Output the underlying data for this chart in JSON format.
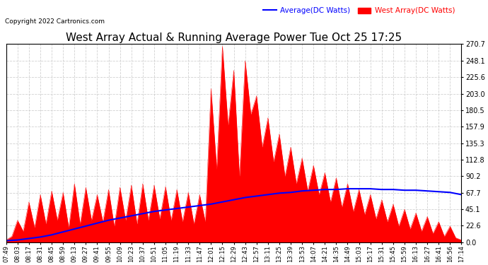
{
  "title": "West Array Actual & Running Average Power Tue Oct 25 17:25",
  "copyright": "Copyright 2022 Cartronics.com",
  "legend_avg": "Average(DC Watts)",
  "legend_west": "West Array(DC Watts)",
  "title_fontsize": 11,
  "yticks": [
    0.0,
    22.6,
    45.1,
    67.7,
    90.2,
    112.8,
    135.3,
    157.9,
    180.5,
    203.0,
    225.6,
    248.1,
    270.7
  ],
  "ymax": 270.7,
  "ymin": 0.0,
  "bg_color": "#ffffff",
  "plot_bg": "#ffffff",
  "grid_color": "#cccccc",
  "fill_color": "#ff0000",
  "avg_line_color": "#0000ff",
  "west_color": "#ff0000",
  "xtick_labels": [
    "07:49",
    "08:03",
    "08:17",
    "08:31",
    "08:45",
    "08:59",
    "09:13",
    "09:27",
    "09:41",
    "09:55",
    "10:09",
    "10:23",
    "10:37",
    "10:51",
    "11:05",
    "11:19",
    "11:33",
    "11:47",
    "12:01",
    "12:15",
    "12:29",
    "12:43",
    "12:57",
    "13:11",
    "13:25",
    "13:39",
    "13:53",
    "14:07",
    "14:21",
    "14:35",
    "14:49",
    "15:03",
    "15:17",
    "15:31",
    "15:45",
    "15:59",
    "16:13",
    "16:27",
    "16:41",
    "16:56",
    "17:14"
  ],
  "west_values": [
    3,
    8,
    30,
    15,
    55,
    20,
    65,
    25,
    70,
    30,
    68,
    20,
    80,
    25,
    75,
    30,
    65,
    28,
    72,
    22,
    75,
    30,
    78,
    25,
    80,
    30,
    78,
    32,
    76,
    30,
    72,
    28,
    68,
    25,
    65,
    28,
    210,
    100,
    268,
    160,
    235,
    90,
    248,
    175,
    200,
    130,
    170,
    110,
    148,
    90,
    130,
    80,
    115,
    70,
    105,
    65,
    95,
    55,
    88,
    48,
    80,
    42,
    72,
    38,
    65,
    32,
    58,
    28,
    52,
    22,
    45,
    18,
    40,
    15,
    35,
    12,
    28,
    8,
    22,
    6,
    3
  ],
  "avg_values": [
    2,
    3,
    5,
    7,
    10,
    14,
    18,
    22,
    26,
    30,
    33,
    36,
    39,
    42,
    44,
    46,
    48,
    50,
    52,
    55,
    58,
    61,
    63,
    65,
    67,
    68,
    70,
    71,
    72,
    72,
    73,
    73,
    73,
    72,
    72,
    71,
    71,
    70,
    69,
    68,
    65
  ]
}
